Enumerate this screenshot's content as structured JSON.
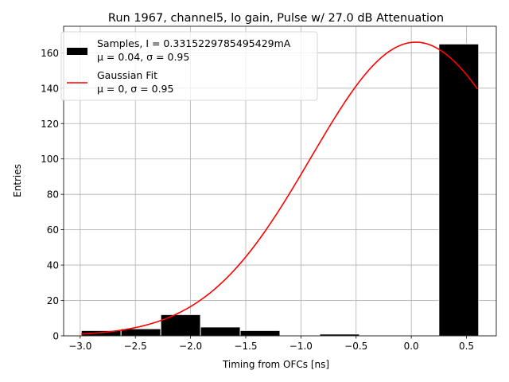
{
  "chart_data": {
    "type": "bar",
    "title": "Run 1967, channel5, lo gain, Pulse w/ 27.0 dB Attenuation",
    "xlabel": "Timing from OFCs [ns]",
    "ylabel": "Entries",
    "xlim": [
      -3.15,
      0.77
    ],
    "ylim": [
      0,
      175
    ],
    "grid": true,
    "legend_position": "upper-left",
    "x_ticks": [
      -3.0,
      -2.5,
      -2.0,
      -1.5,
      -1.0,
      -0.5,
      0.0,
      0.5
    ],
    "x_tick_labels": [
      "−3.0",
      "−2.5",
      "−2.0",
      "−1.5",
      "−1.0",
      "−0.5",
      "0.0",
      "0.5"
    ],
    "y_ticks": [
      0,
      20,
      40,
      60,
      80,
      100,
      120,
      140,
      160
    ],
    "y_tick_labels": [
      "0",
      "20",
      "40",
      "60",
      "80",
      "100",
      "120",
      "140",
      "160"
    ],
    "histogram": {
      "name": "Samples",
      "color": "#000000",
      "edge_color": "#ffffff",
      "bin_edges": [
        -2.99,
        -2.63,
        -2.27,
        -1.91,
        -1.55,
        -1.19,
        -0.83,
        -0.47,
        -0.11,
        0.25,
        0.61
      ],
      "counts": [
        3,
        4,
        12,
        5,
        3,
        0,
        1,
        0,
        0,
        165
      ]
    },
    "fit": {
      "name": "Gaussian Fit",
      "color": "#ff0000",
      "mu": 0.04,
      "sigma": 0.95,
      "amplitude": 166,
      "x_range": [
        -2.99,
        0.6
      ]
    },
    "legend": [
      {
        "label_line1": "Samples, I = 0.3315229785495429mA",
        "label_line2": "μ = 0.04, σ = 0.95"
      },
      {
        "label_line1": "Gaussian Fit",
        "label_line2": "μ = 0, σ = 0.95"
      }
    ]
  }
}
